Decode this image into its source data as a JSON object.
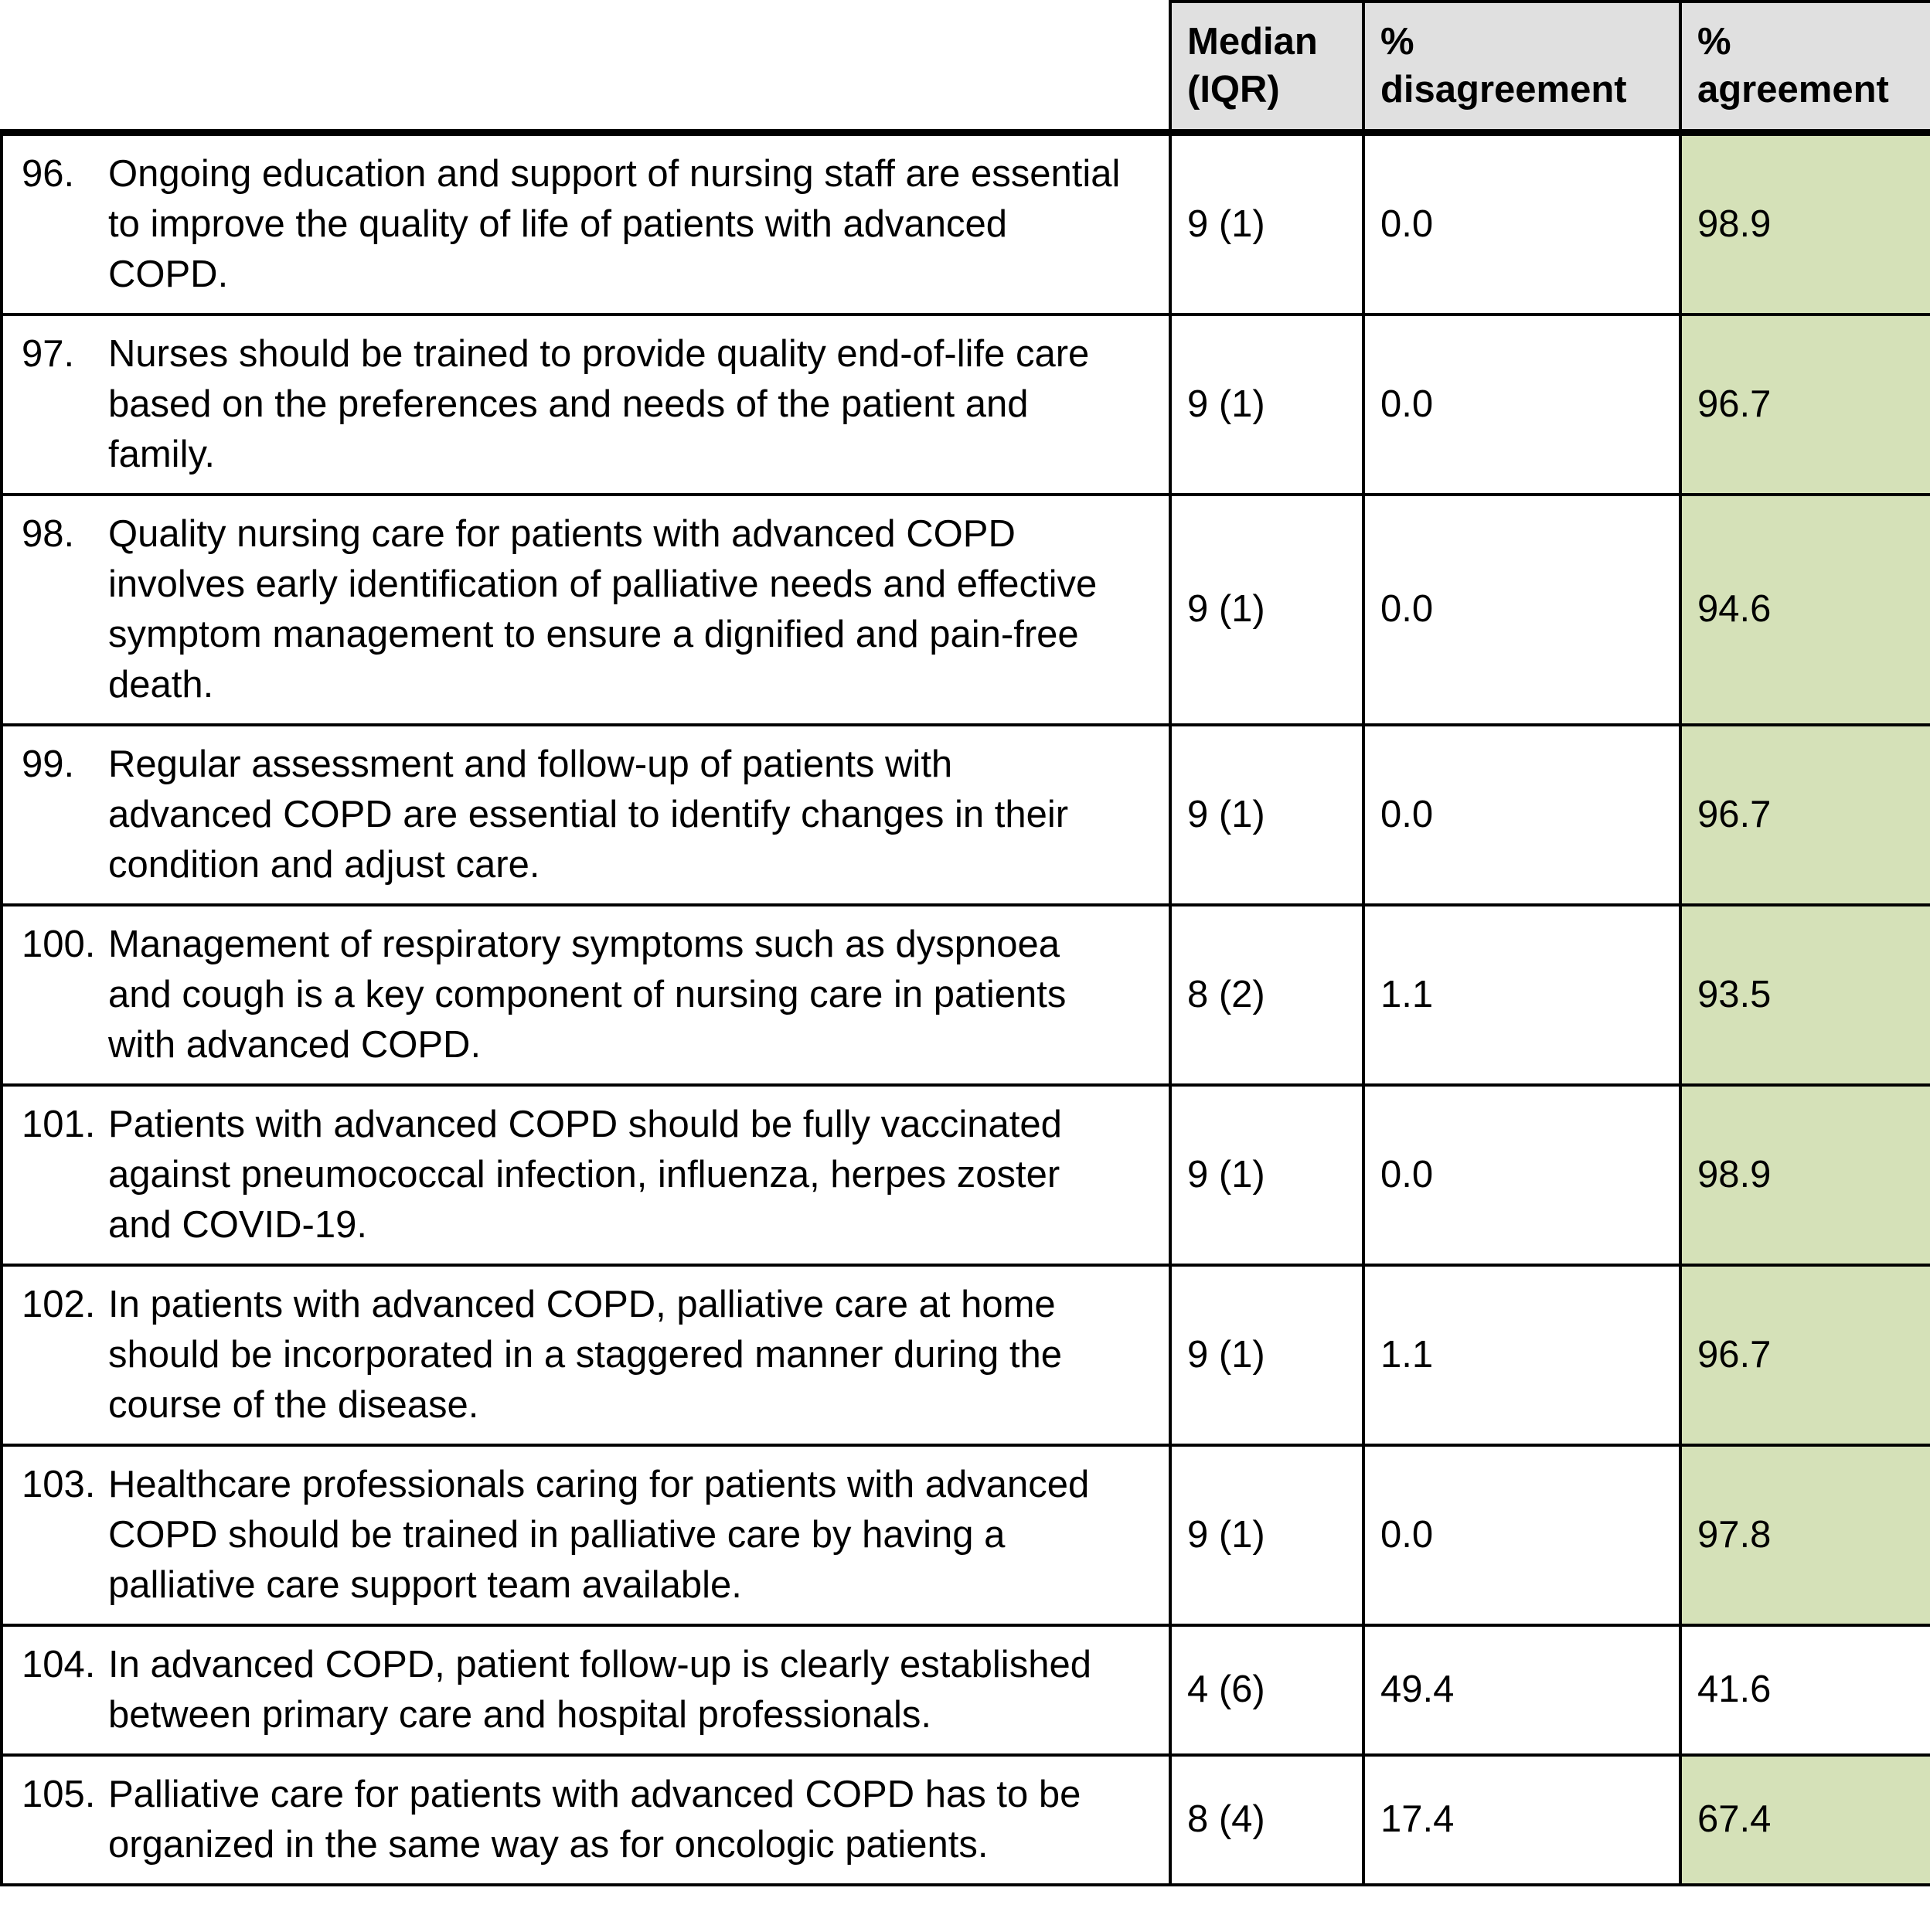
{
  "table": {
    "colors": {
      "header_bg": "#e0e0e0",
      "agreement_bg": "#d5e1b8"
    },
    "columns": {
      "median": "Median\n(IQR)",
      "disagreement": "%\ndisagreement",
      "agreement": "%\nagreement"
    },
    "rows": [
      {
        "number": "96.",
        "text": "Ongoing education and support of nursing staff are essential to improve the quality of life of patients with advanced COPD.",
        "median": "9 (1)",
        "disagreement": "0.0",
        "agreement": "98.9",
        "agreement_highlight": true
      },
      {
        "number": "97.",
        "text": "Nurses should be trained to provide quality end-of-life care based on the preferences and needs of the patient and family.",
        "median": "9 (1)",
        "disagreement": "0.0",
        "agreement": "96.7",
        "agreement_highlight": true
      },
      {
        "number": "98.",
        "text": "Quality nursing care for patients with advanced COPD involves early identification of palliative needs and effective symptom management to ensure a dignified and pain-free death.",
        "median": "9 (1)",
        "disagreement": "0.0",
        "agreement": "94.6",
        "agreement_highlight": true
      },
      {
        "number": "99.",
        "text": "Regular assessment and follow-up of patients with advanced COPD are essential to identify changes in their condition and adjust care.",
        "median": "9 (1)",
        "disagreement": "0.0",
        "agreement": "96.7",
        "agreement_highlight": true
      },
      {
        "number": "100.",
        "text": "Management of respiratory symptoms such as dyspnoea and cough is a key component of nursing care in patients with advanced COPD.",
        "median": "8 (2)",
        "disagreement": "1.1",
        "agreement": "93.5",
        "agreement_highlight": true
      },
      {
        "number": "101.",
        "text": "Patients with advanced COPD should be fully vaccinated against pneumococcal infection, influenza, herpes zoster and COVID-19.",
        "median": "9 (1)",
        "disagreement": "0.0",
        "agreement": "98.9",
        "agreement_highlight": true
      },
      {
        "number": "102.",
        "text": "In patients with advanced COPD, palliative care at home should be incorporated in a staggered manner during the course of the disease.",
        "median": "9 (1)",
        "disagreement": "1.1",
        "agreement": "96.7",
        "agreement_highlight": true
      },
      {
        "number": "103.",
        "text": "Healthcare professionals caring for patients with advanced COPD should be trained in palliative care by having a palliative care support team available.",
        "median": "9 (1)",
        "disagreement": "0.0",
        "agreement": "97.8",
        "agreement_highlight": true
      },
      {
        "number": "104.",
        "text": "In advanced COPD, patient follow-up is clearly established between primary care and hospital professionals.",
        "median": "4 (6)",
        "disagreement": "49.4",
        "agreement": "41.6",
        "agreement_highlight": false
      },
      {
        "number": "105.",
        "text": "Palliative care for patients with advanced COPD has to be organized in the same way as for oncologic patients.",
        "median": "8 (4)",
        "disagreement": "17.4",
        "agreement": "67.4",
        "agreement_highlight": true
      }
    ]
  }
}
